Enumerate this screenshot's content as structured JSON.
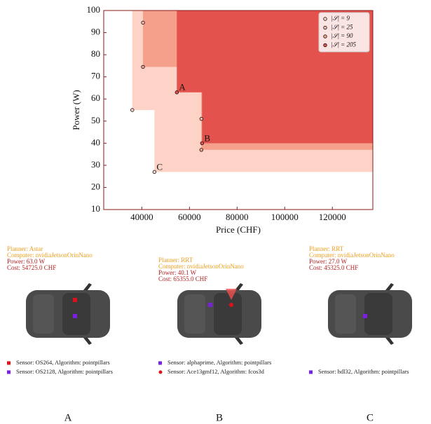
{
  "chart_data": {
    "type": "scatter",
    "x_label": "Price (CHF)",
    "y_label": "Power (W)",
    "xlim": [
      24000,
      137000
    ],
    "ylim": [
      10,
      100
    ],
    "xticks": [
      40000,
      60000,
      80000,
      100000,
      120000
    ],
    "yticks": [
      10,
      20,
      30,
      40,
      50,
      60,
      70,
      80,
      90,
      100
    ],
    "legend_position": "upper right",
    "series": [
      {
        "name": "|𝒮| = 9",
        "color": "#fcd3c6",
        "x": [
          36000,
          45300
        ],
        "y": [
          55,
          27
        ]
      },
      {
        "name": "|𝒮| = 25",
        "color": "#f9b6a4",
        "x": [
          40500,
          65000
        ],
        "y": [
          94.5,
          51
        ]
      },
      {
        "name": "|𝒮| = 90",
        "color": "#f4a08b",
        "x": [
          40500,
          65000
        ],
        "y": [
          74.5,
          37
        ]
      },
      {
        "name": "|𝒮| = 205",
        "color": "#e3524c",
        "x": [
          54700,
          65300
        ],
        "y": [
          63,
          40
        ]
      }
    ],
    "annotations": [
      {
        "text": "A",
        "x": 54700,
        "y": 63
      },
      {
        "text": "B",
        "x": 65300,
        "y": 40
      },
      {
        "text": "C",
        "x": 45300,
        "y": 27
      }
    ]
  },
  "panels": [
    {
      "label": "A",
      "planner": "Planner: Astar",
      "computer": "Computer: nvidiaJetsonOrinNano",
      "power": "Power: 63.0 W",
      "cost": "Cost: 54725.0 CHF",
      "sensors": [
        "Sensor: OS264, Algorithm: pointpillars",
        "Sensor: OS2128, Algorithm: pointpillars"
      ]
    },
    {
      "label": "B",
      "planner": "Planner: RRT",
      "computer": "Computer: nvidiaJetsonOrinNano",
      "power": "Power: 40.1 W",
      "cost": "Cost: 65355.0 CHF",
      "sensors": [
        "Sensor: alphaprime, Algorithm: pointpillars",
        "Sensor: Ace13gmf12, Algorithm: fcos3d"
      ]
    },
    {
      "label": "C",
      "planner": "Planner: RRT",
      "computer": "Computer: nvidiaJetsonOrinNano",
      "power": "Power: 27.0 W",
      "cost": "Cost: 45325.0 CHF",
      "sensors": [
        "Sensor: hdl32, Algorithm: pointpillars"
      ]
    }
  ]
}
